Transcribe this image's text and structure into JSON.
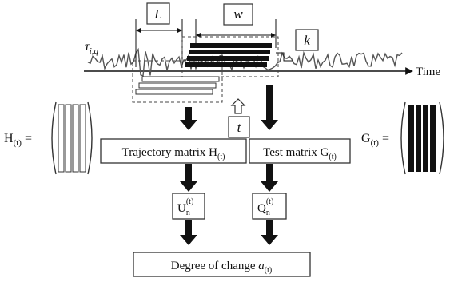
{
  "labels": {
    "L": "L",
    "w": "w",
    "k": "k",
    "t": "t",
    "tau": "τ",
    "tau_sub": "i,q",
    "time": "Time",
    "H_left": "H",
    "H_left_sub": "(t)",
    "H_left_eq": "=",
    "G_right": "G",
    "G_right_sub": "(t)",
    "G_right_eq": "="
  },
  "boxes": {
    "trajectory": {
      "text": "Trajectory matrix H",
      "sub": "(t)"
    },
    "test": {
      "text": "Test matrix G",
      "sub": "(t)"
    },
    "U": {
      "text": "U",
      "sub": "n",
      "sup": "(t)"
    },
    "Q": {
      "text": "Q",
      "sub": "n",
      "sup": "(t)"
    },
    "degree": {
      "text": "Degree of change ",
      "var": "a",
      "sub": "(t)"
    }
  },
  "colors": {
    "ink": "#111111",
    "signal": "#555555",
    "dashed": "#444444"
  }
}
